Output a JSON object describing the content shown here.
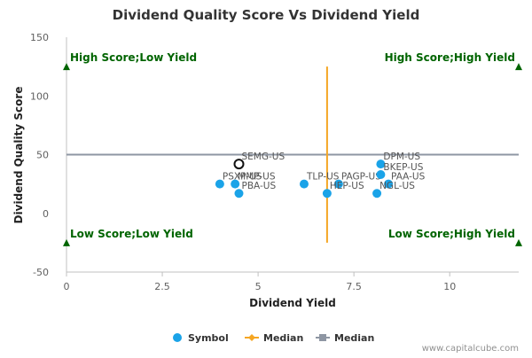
{
  "chart_data": {
    "type": "scatter",
    "title": "Dividend Quality Score Vs Dividend Yield",
    "xlabel": "Dividend Yield",
    "ylabel": "Dividend Quality Score",
    "xlim": [
      0,
      11.8
    ],
    "ylim": [
      -50,
      150
    ],
    "x_ticks": [
      0,
      2.5,
      5,
      7.5,
      10
    ],
    "y_ticks": [
      -50,
      0,
      50,
      100,
      150
    ],
    "x_tick_labels": [
      "0",
      "2.5",
      "5",
      "7.5",
      "10"
    ],
    "y_tick_labels": [
      "-50",
      "0",
      "50",
      "100",
      "150"
    ],
    "grid": false,
    "legend_position": "bottom",
    "colors": {
      "symbol": "#1aa3e8",
      "median_yield": "#f5a623",
      "median_score": "#8e96a3",
      "quadrant": "#006400",
      "label": "#555555"
    },
    "series": [
      {
        "name": "Symbol",
        "points": [
          {
            "label": "SEMG-US",
            "x": 4.5,
            "y": 42,
            "highlight": true
          },
          {
            "label": "PSXP-US",
            "x": 4.0,
            "y": 25
          },
          {
            "label": "MMP-US",
            "x": 4.4,
            "y": 25
          },
          {
            "label": "PBA-US",
            "x": 4.5,
            "y": 17
          },
          {
            "label": "TLP-US",
            "x": 6.2,
            "y": 25
          },
          {
            "label": "PAGP-US",
            "x": 7.1,
            "y": 25
          },
          {
            "label": "HEP-US",
            "x": 6.8,
            "y": 17
          },
          {
            "label": "DPM-US",
            "x": 8.2,
            "y": 42
          },
          {
            "label": "BKEP-US",
            "x": 8.2,
            "y": 33
          },
          {
            "label": "PAA-US",
            "x": 8.4,
            "y": 25
          },
          {
            "label": "NGL-US",
            "x": 8.1,
            "y": 17
          }
        ]
      },
      {
        "name": "Median",
        "orientation": "vertical",
        "value": 6.8
      },
      {
        "name": "Median",
        "orientation": "horizontal",
        "value": 50
      }
    ],
    "quadrant_labels": [
      {
        "text": "High Score;Low Yield",
        "x": 0,
        "y": 125,
        "align": "left"
      },
      {
        "text": "High Score;High Yield",
        "x": 11.8,
        "y": 125,
        "align": "right"
      },
      {
        "text": "Low Score;Low Yield",
        "x": 0,
        "y": -25,
        "align": "left"
      },
      {
        "text": "Low Score;High Yield",
        "x": 11.8,
        "y": -25,
        "align": "right"
      }
    ],
    "credit": "www.capitalcube.com"
  }
}
